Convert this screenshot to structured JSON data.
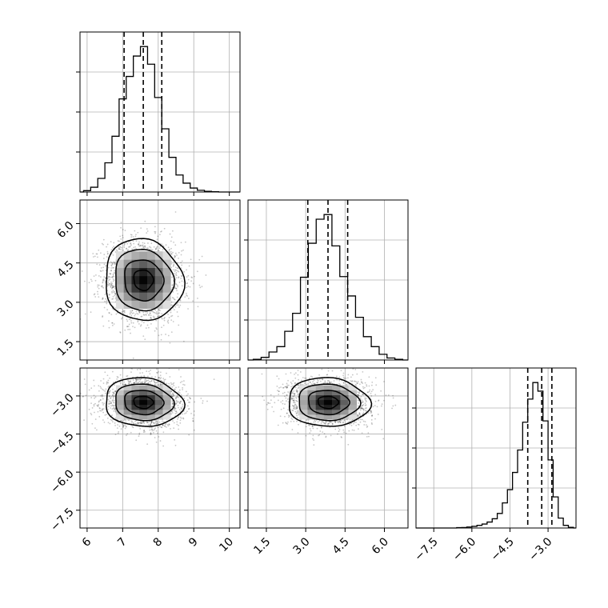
{
  "chart_data": {
    "type": "corner",
    "grid": true,
    "panel_background": "#ffffff",
    "mark_color": "#000000",
    "parameters": [
      {
        "index": 0,
        "range": [
          5.8,
          10.3
        ],
        "ticks": [
          6,
          7,
          8,
          9,
          10
        ],
        "tick_labels": [
          "6",
          "7",
          "8",
          "9",
          "10"
        ]
      },
      {
        "index": 1,
        "range": [
          0.8,
          6.9
        ],
        "ticks": [
          1.5,
          3.0,
          4.5,
          6.0
        ],
        "tick_labels": [
          "1.5",
          "3.0",
          "4.5",
          "6.0"
        ]
      },
      {
        "index": 2,
        "range": [
          -8.2,
          -1.9
        ],
        "ticks": [
          -7.5,
          -6.0,
          -4.5,
          -3.0
        ],
        "tick_labels": [
          "−7.5",
          "−6.0",
          "−4.5",
          "−3.0"
        ]
      }
    ],
    "histograms": [
      {
        "param": 0,
        "bin_edges": [
          5.9,
          6.1,
          6.3,
          6.5,
          6.7,
          6.9,
          7.1,
          7.3,
          7.5,
          7.7,
          7.9,
          8.1,
          8.3,
          8.5,
          8.7,
          8.9,
          9.1,
          9.3,
          9.5,
          9.7
        ],
        "counts": [
          20,
          70,
          200,
          430,
          820,
          1370,
          1700,
          2000,
          2140,
          1880,
          1390,
          930,
          510,
          250,
          130,
          58,
          25,
          10,
          4
        ],
        "quantiles_16_50_84": [
          7.04,
          7.58,
          8.1
        ]
      },
      {
        "param": 1,
        "bin_edges": [
          1.0,
          1.3,
          1.6,
          1.9,
          2.2,
          2.5,
          2.8,
          3.1,
          3.4,
          3.7,
          4.0,
          4.3,
          4.6,
          4.9,
          5.2,
          5.5,
          5.8,
          6.1,
          6.4,
          6.7
        ],
        "counts": [
          10,
          40,
          120,
          200,
          430,
          700,
          1240,
          1750,
          2110,
          2180,
          1710,
          1250,
          960,
          640,
          350,
          200,
          85,
          30,
          10
        ],
        "quantiles_16_50_84": [
          3.08,
          3.85,
          4.6
        ]
      },
      {
        "param": 2,
        "bin_edges": [
          -6.6,
          -6.4,
          -6.2,
          -6.0,
          -5.8,
          -5.6,
          -5.4,
          -5.2,
          -5.0,
          -4.8,
          -4.6,
          -4.4,
          -4.2,
          -4.0,
          -3.8,
          -3.6,
          -3.4,
          -3.2,
          -3.0,
          -2.8,
          -2.6,
          -2.4,
          -2.2,
          -2.0
        ],
        "counts": [
          5,
          8,
          15,
          25,
          40,
          60,
          90,
          140,
          220,
          380,
          580,
          840,
          1180,
          1600,
          1950,
          2200,
          2070,
          1620,
          1030,
          470,
          150,
          40,
          10
        ],
        "quantiles_16_50_84": [
          -3.8,
          -3.25,
          -2.85
        ]
      }
    ],
    "pairs": [
      {
        "x_param": 0,
        "y_param": 1,
        "center": [
          7.58,
          3.85
        ],
        "sigma": [
          0.55,
          0.78
        ],
        "corr": -0.06,
        "contour_levels_sigma": [
          0.5,
          1.0,
          1.5,
          2.0
        ]
      },
      {
        "x_param": 0,
        "y_param": 2,
        "center": [
          7.58,
          -3.25
        ],
        "sigma": [
          0.55,
          0.48
        ],
        "corr": -0.08,
        "contour_levels_sigma": [
          0.5,
          1.0,
          1.5,
          2.0
        ]
      },
      {
        "x_param": 1,
        "y_param": 2,
        "center": [
          3.85,
          -3.25
        ],
        "sigma": [
          0.78,
          0.48
        ],
        "corr": -0.05,
        "contour_levels_sigma": [
          0.5,
          1.0,
          1.5,
          2.0
        ]
      }
    ]
  }
}
